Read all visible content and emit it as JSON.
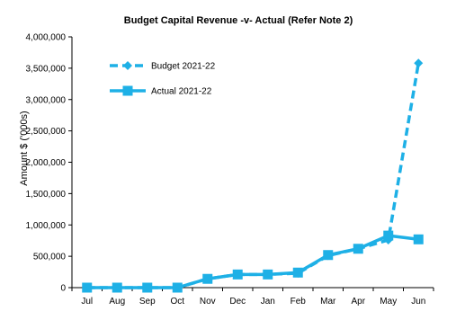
{
  "chart_data": {
    "type": "line",
    "title": "Budget Capital Revenue -v- Actual (Refer Note 2)",
    "xlabel": "",
    "ylabel": "Amount $ ('000s)",
    "ylim": [
      0,
      4000000
    ],
    "yticks": [
      0,
      500000,
      1000000,
      1500000,
      2000000,
      2500000,
      3000000,
      3500000,
      4000000
    ],
    "ytick_labels": [
      "0",
      "500,000",
      "1,000,000",
      "1,500,000",
      "2,000,000",
      "2,500,000",
      "3,000,000",
      "3,500,000",
      "4,000,000"
    ],
    "categories": [
      "Jul",
      "Aug",
      "Sep",
      "Oct",
      "Nov",
      "Dec",
      "Jan",
      "Feb",
      "Mar",
      "Apr",
      "May",
      "Jun"
    ],
    "grid": false,
    "legend_position": "top-left",
    "series": [
      {
        "name": "Budget 2021-22",
        "style": "dashed",
        "marker": "diamond",
        "color": "#1eb0e6",
        "values": [
          0,
          0,
          0,
          0,
          140000,
          210000,
          210000,
          230000,
          510000,
          620000,
          760000,
          3580000
        ]
      },
      {
        "name": "Actual 2021-22",
        "style": "solid",
        "marker": "square",
        "color": "#1eb0e6",
        "values": [
          0,
          0,
          0,
          0,
          140000,
          210000,
          210000,
          240000,
          520000,
          620000,
          830000,
          770000
        ]
      }
    ]
  }
}
